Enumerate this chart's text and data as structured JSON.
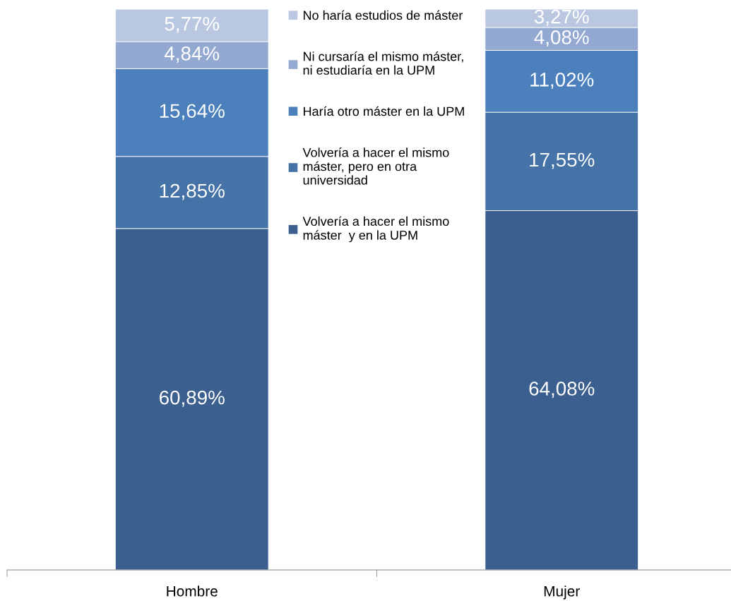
{
  "chart_data": {
    "type": "bar",
    "stacked": true,
    "categories": [
      "Hombre",
      "Mujer"
    ],
    "series": [
      {
        "name": "Volvería a hacer el mismo\nmáster  y en la UPM",
        "color": "#3b5f8e",
        "values": [
          60.89,
          64.08
        ],
        "value_labels": [
          "60,89%",
          "64,08%"
        ]
      },
      {
        "name": "Volvería a hacer el mismo\nmáster, pero en otra\nuniversidad",
        "color": "#4673a7",
        "values": [
          12.85,
          17.55
        ],
        "value_labels": [
          "12,85%",
          "17,55%"
        ]
      },
      {
        "name": "Haría otro máster en la UPM",
        "color": "#4b80bc",
        "values": [
          15.64,
          11.02
        ],
        "value_labels": [
          "15,64%",
          "11,02%"
        ]
      },
      {
        "name": "Ni cursaría el mismo máster,\nni estudiaría en la UPM",
        "color": "#93a9d1",
        "values": [
          4.84,
          4.08
        ],
        "value_labels": [
          "4,84%",
          "4,08%"
        ]
      },
      {
        "name": "No haría estudios de máster",
        "color": "#bac7e0",
        "values": [
          5.77,
          3.27
        ],
        "value_labels": [
          "5,77%",
          "3,27%"
        ]
      }
    ],
    "legend": "top",
    "tick_labels": "x"
  }
}
